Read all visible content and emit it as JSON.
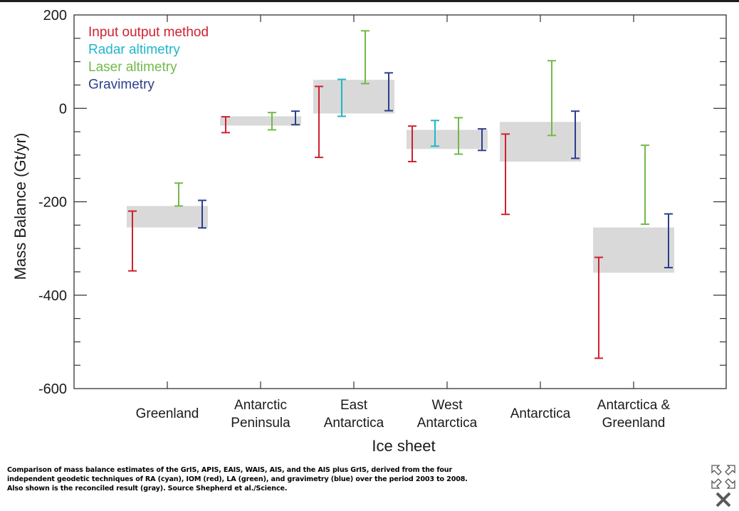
{
  "chart_data": {
    "type": "errorbar",
    "title": "",
    "xlabel": "Ice sheet",
    "ylabel": "Mass Balance (Gt/yr)",
    "ylim": [
      -600,
      200
    ],
    "yticks_major": [
      200,
      0,
      -200,
      -400,
      -600
    ],
    "ytick_labels": [
      "200",
      "0",
      "-200",
      "-400",
      "-600"
    ],
    "yticks_minor_step": 50,
    "grid": false,
    "legend_position": "top-left",
    "categories": [
      {
        "label_lines": [
          "Greenland"
        ]
      },
      {
        "label_lines": [
          "Antarctic",
          "Peninsula"
        ]
      },
      {
        "label_lines": [
          "East",
          "Antarctica"
        ]
      },
      {
        "label_lines": [
          "West",
          "Antarctica"
        ]
      },
      {
        "label_lines": [
          "Antarctica"
        ]
      },
      {
        "label_lines": [
          "Antarctica &",
          "Greenland"
        ]
      }
    ],
    "series": [
      {
        "key": "iom",
        "name": "Input output method",
        "color": "#d0202e",
        "ranges": [
          [
            -348,
            -220
          ],
          [
            -52,
            -18
          ],
          [
            -105,
            47
          ],
          [
            -114,
            -38
          ],
          [
            -227,
            -55
          ],
          [
            -535,
            -319
          ]
        ]
      },
      {
        "key": "ra",
        "name": "Radar altimetry",
        "color": "#22b5c9",
        "ranges": [
          null,
          null,
          [
            -17,
            62
          ],
          [
            -81,
            -26
          ],
          null,
          null
        ]
      },
      {
        "key": "la",
        "name": "Laser altimetry",
        "color": "#72b94a",
        "ranges": [
          [
            -209,
            -160
          ],
          [
            -46,
            -9
          ],
          [
            53,
            166
          ],
          [
            -98,
            -20
          ],
          [
            -58,
            102
          ],
          [
            -248,
            -79
          ]
        ]
      },
      {
        "key": "grav",
        "name": "Gravimetry",
        "color": "#2c3f8c",
        "ranges": [
          [
            -256,
            -197
          ],
          [
            -35,
            -6
          ],
          [
            -5,
            76
          ],
          [
            -90,
            -44
          ],
          [
            -107,
            -6
          ],
          [
            -341,
            -226
          ]
        ]
      }
    ],
    "reconciled": {
      "name": "Reconciled result",
      "color": "#d9d9d9",
      "ranges": [
        [
          -255,
          -209
        ],
        [
          -37,
          -17
        ],
        [
          -11,
          61
        ],
        [
          -87,
          -46
        ],
        [
          -114,
          -29
        ],
        [
          -352,
          -255
        ]
      ]
    }
  },
  "caption": {
    "lines": [
      "Comparison of mass balance estimates of the GrIS, APIS, EAIS, WAIS, AIS, and the AIS plus GrIS, derived from the four",
      "independent geodetic techniques of RA (cyan), IOM (red), LA (green), and gravimetry (blue) over the period 2003 to 2008.",
      "Also shown is the reconciled result (gray). Source Shepherd et al./Science."
    ]
  },
  "controls": {
    "expand_icon": "expand-arrows-icon",
    "close_icon": "close-x-icon"
  }
}
